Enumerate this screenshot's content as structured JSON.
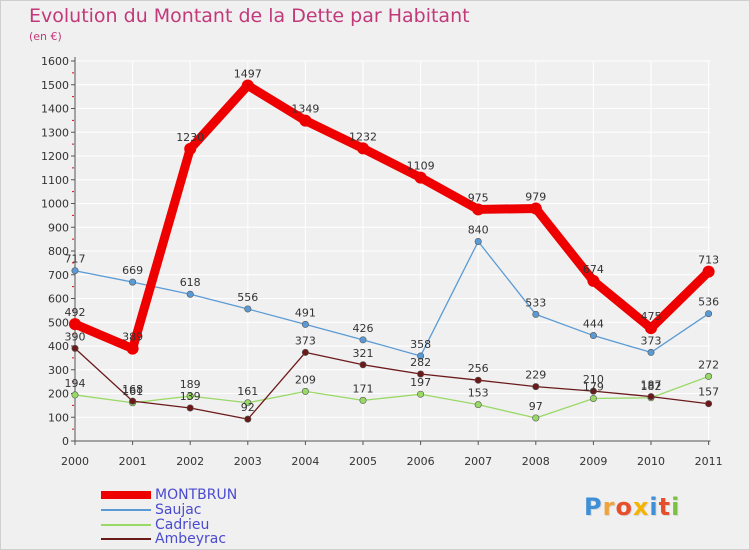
{
  "title": "Evolution du Montant de la Dette par Habitant",
  "unit_label": "(en €)",
  "logo_text": "Proxiti",
  "colors": {
    "title": "#c2397a",
    "axis": "#555555",
    "tick": "#e8001c",
    "grid": "#ffffff",
    "background": "#f0f0f0"
  },
  "chart_data": {
    "type": "line",
    "title": "Evolution du Montant de la Dette par Habitant",
    "ylabel": "(en €)",
    "xlabel": "",
    "x": [
      "2000",
      "2001",
      "2002",
      "2003",
      "2004",
      "2005",
      "2006",
      "2007",
      "2008",
      "2009",
      "2010",
      "2011"
    ],
    "ylim": [
      0,
      1600
    ],
    "yticks": [
      0,
      100,
      200,
      300,
      400,
      500,
      600,
      700,
      800,
      900,
      1000,
      1100,
      1200,
      1300,
      1400,
      1500,
      1600
    ],
    "grid": true,
    "legend_position": "bottom-left",
    "series": [
      {
        "name": "MONTBRUN",
        "color": "#ee0000",
        "values": [
          492,
          389,
          1230,
          1497,
          1349,
          1232,
          1109,
          975,
          979,
          674,
          475,
          713
        ]
      },
      {
        "name": "Saujac",
        "color": "#5b9bd5",
        "values": [
          717,
          669,
          618,
          556,
          491,
          426,
          358,
          840,
          533,
          444,
          373,
          536
        ]
      },
      {
        "name": "Cadrieu",
        "color": "#99d966",
        "values": [
          194,
          161,
          189,
          161,
          209,
          171,
          197,
          153,
          97,
          179,
          182,
          272
        ]
      },
      {
        "name": "Ambeyrac",
        "color": "#6b1a1a",
        "values": [
          390,
          168,
          139,
          92,
          373,
          321,
          282,
          256,
          229,
          210,
          187,
          157
        ]
      }
    ]
  }
}
